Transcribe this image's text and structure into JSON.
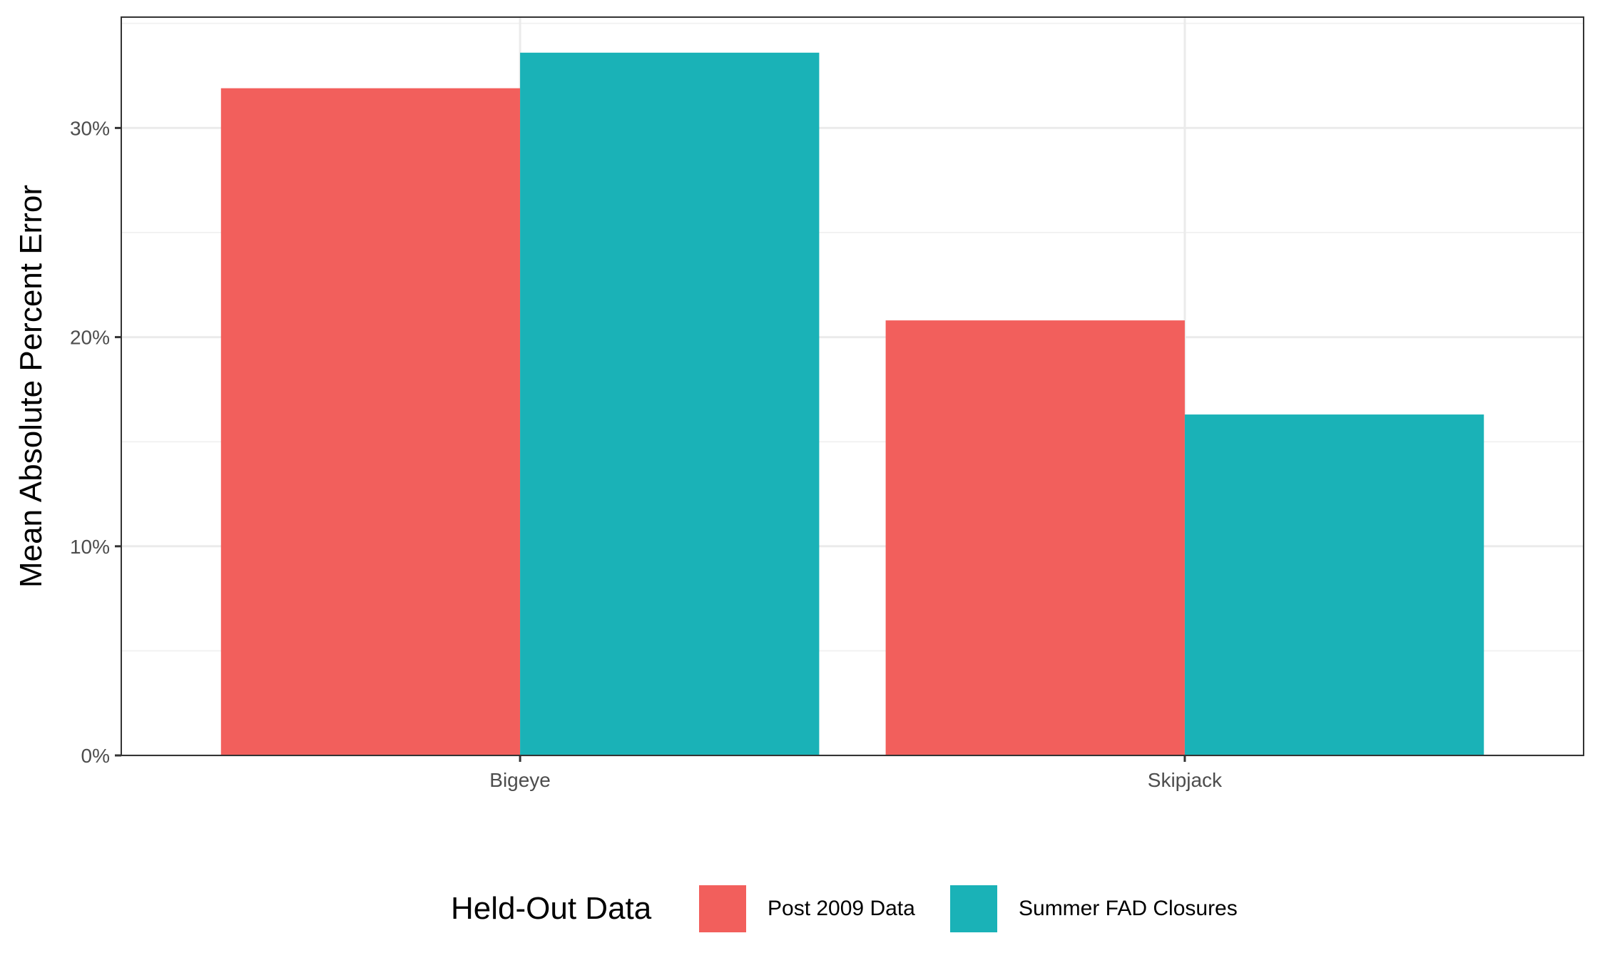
{
  "chart_data": {
    "type": "bar",
    "title": "",
    "xlabel": "",
    "ylabel": "Mean Absolute Percent Error",
    "categories": [
      "Bigeye",
      "Skipjack"
    ],
    "series": [
      {
        "name": "Post 2009 Data",
        "color": "#F25F5C",
        "values": [
          31.9,
          20.8
        ]
      },
      {
        "name": "Summer FAD Closures",
        "color": "#1AB2B7",
        "values": [
          33.6,
          16.3
        ]
      }
    ],
    "ylim": [
      0,
      35.3
    ],
    "yticks": [
      0,
      10,
      20,
      30
    ],
    "ytick_labels": [
      "0%",
      "10%",
      "20%",
      "30%"
    ],
    "grid": true,
    "legend": {
      "title": "Held-Out Data",
      "position": "bottom"
    }
  }
}
